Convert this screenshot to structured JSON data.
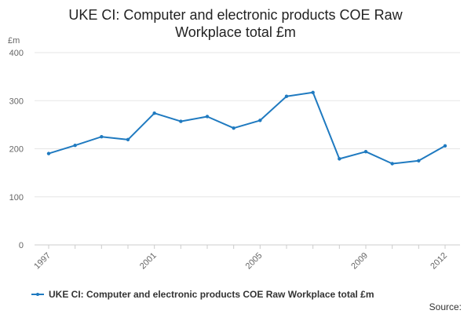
{
  "chart_data": {
    "type": "line",
    "title_lines": [
      "UKE CI: Computer and electronic products COE Raw",
      "Workplace total £m"
    ],
    "unit_label": "£m",
    "ylim": [
      0,
      400
    ],
    "yticks": [
      0,
      100,
      200,
      300,
      400
    ],
    "x": [
      1997,
      1998,
      1999,
      2000,
      2001,
      2002,
      2003,
      2004,
      2005,
      2006,
      2007,
      2008,
      2009,
      2010,
      2011,
      2012
    ],
    "xtick_labels": [
      "1997",
      "2001",
      "2005",
      "2009",
      "2012"
    ],
    "series": [
      {
        "name": "UKE CI: Computer and electronic products COE Raw Workplace total £m",
        "values": [
          190,
          207,
          225,
          219,
          274,
          257,
          267,
          243,
          259,
          309,
          317,
          179,
          194,
          169,
          175,
          206
        ]
      }
    ],
    "color": "#1f7ac0",
    "grid": true,
    "legend_position": "bottom-left",
    "source_label": "Source:"
  }
}
